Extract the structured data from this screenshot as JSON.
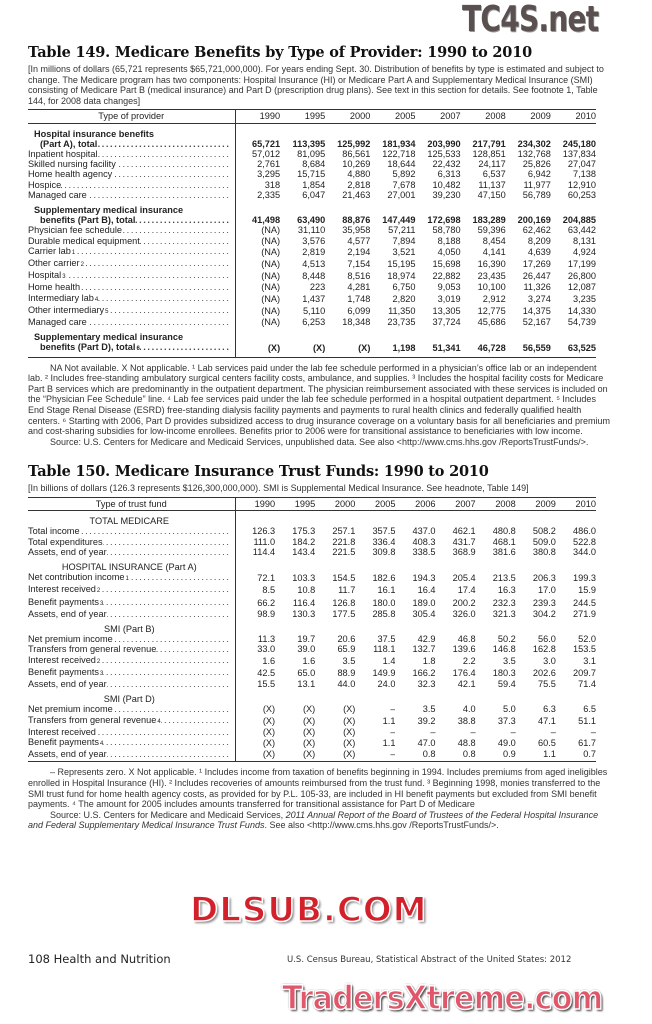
{
  "watermarks": {
    "top": "TC4S.net",
    "middle": "DLSUB.COM",
    "bottom": "TradersXtreme.com"
  },
  "table149": {
    "title": "Table 149. Medicare Benefits by Type of Provider: 1990 to 2010",
    "headnote": "[In millions of dollars (65,721 represents $65,721,000,000). For years ending Sept. 30. Distribution of benefits by type is estimated and subject to change. The Medicare program has two components: Hospital Insurance (HI) or Medicare Part A and Supplementary Medical Insurance (SMI) consisting of Medicare Part B (medical insurance) and Part D (prescription drug plans). See text in this section for details. See footnote 1, Table 144, for 2008 data changes]",
    "stub_header": "Type of provider",
    "years": [
      "1990",
      "1995",
      "2000",
      "2005",
      "2007",
      "2008",
      "2009",
      "2010"
    ],
    "rows": [
      {
        "type": "head",
        "label": "Hospital insurance benefits"
      },
      {
        "type": "total",
        "label": "(Part A), total",
        "values": [
          "65,721",
          "113,395",
          "125,992",
          "181,934",
          "203,990",
          "217,791",
          "234,302",
          "245,180"
        ]
      },
      {
        "type": "row",
        "label": "Inpatient hospital",
        "values": [
          "57,012",
          "81,095",
          "86,561",
          "122,718",
          "125,533",
          "128,851",
          "132,768",
          "137,834"
        ]
      },
      {
        "type": "row",
        "label": "Skilled nursing facility",
        "values": [
          "2,761",
          "8,684",
          "10,269",
          "18,644",
          "22,432",
          "24,117",
          "25,826",
          "27,047"
        ]
      },
      {
        "type": "row",
        "label": "Home health agency",
        "values": [
          "3,295",
          "15,715",
          "4,880",
          "5,892",
          "6,313",
          "6,537",
          "6,942",
          "7,138"
        ]
      },
      {
        "type": "row",
        "label": "Hospice",
        "values": [
          "318",
          "1,854",
          "2,818",
          "7,678",
          "10,482",
          "11,137",
          "11,977",
          "12,910"
        ]
      },
      {
        "type": "row",
        "label": "Managed care",
        "values": [
          "2,335",
          "6,047",
          "21,463",
          "27,001",
          "39,230",
          "47,150",
          "56,789",
          "60,253"
        ]
      },
      {
        "type": "head",
        "label": "Supplementary medical insurance"
      },
      {
        "type": "total",
        "label": "benefits (Part B), total",
        "values": [
          "41,498",
          "63,490",
          "88,876",
          "147,449",
          "172,698",
          "183,289",
          "200,169",
          "204,885"
        ]
      },
      {
        "type": "row",
        "label": "Physician fee schedule",
        "values": [
          "(NA)",
          "31,110",
          "35,958",
          "57,211",
          "58,780",
          "59,396",
          "62,462",
          "63,442"
        ]
      },
      {
        "type": "row",
        "label": "Durable medical equipment",
        "values": [
          "(NA)",
          "3,576",
          "4,577",
          "7,894",
          "8,188",
          "8,454",
          "8,209",
          "8,131"
        ]
      },
      {
        "type": "row",
        "label": "Carrier lab",
        "sup": "1",
        "values": [
          "(NA)",
          "2,819",
          "2,194",
          "3,521",
          "4,050",
          "4,141",
          "4,639",
          "4,924"
        ]
      },
      {
        "type": "row",
        "label": "Other carrier",
        "sup": "2",
        "values": [
          "(NA)",
          "4,513",
          "7,154",
          "15,195",
          "15,698",
          "16,390",
          "17,269",
          "17,199"
        ]
      },
      {
        "type": "row",
        "label": "Hospital",
        "sup": "3",
        "values": [
          "(NA)",
          "8,448",
          "8,516",
          "18,974",
          "22,882",
          "23,435",
          "26,447",
          "26,800"
        ]
      },
      {
        "type": "row",
        "label": "Home health",
        "values": [
          "(NA)",
          "223",
          "4,281",
          "6,750",
          "9,053",
          "10,100",
          "11,326",
          "12,087"
        ]
      },
      {
        "type": "row",
        "label": "Intermediary lab",
        "sup": "4",
        "values": [
          "(NA)",
          "1,437",
          "1,748",
          "2,820",
          "3,019",
          "2,912",
          "3,274",
          "3,235"
        ]
      },
      {
        "type": "row",
        "label": "Other intermediary",
        "sup": "5",
        "values": [
          "(NA)",
          "5,110",
          "6,099",
          "11,350",
          "13,305",
          "12,775",
          "14,375",
          "14,330"
        ]
      },
      {
        "type": "row",
        "label": "Managed care",
        "values": [
          "(NA)",
          "6,253",
          "18,348",
          "23,735",
          "37,724",
          "45,686",
          "52,167",
          "54,739"
        ]
      },
      {
        "type": "head",
        "label": "Supplementary medical insurance"
      },
      {
        "type": "total",
        "label": "benefits (Part D), total",
        "sup": "6",
        "values": [
          "(X)",
          "(X)",
          "(X)",
          "1,198",
          "51,341",
          "46,728",
          "56,559",
          "63,525"
        ]
      }
    ],
    "notes": "NA Not available. X Not applicable. ¹ Lab services paid under the lab fee schedule performed in a physician’s office lab or an independent lab. ² Includes free-standing ambulatory surgical centers facility costs, ambulance, and supplies. ³ Includes the hospital facility costs for Medicare Part B services which are predominantly in the outpatient department. The physician reimbursement associated with these services is included on the “Physician Fee Schedule” line. ⁴ Lab fee services paid under the lab fee schedule performed in a hospital outpatient department. ⁵ Includes End Stage Renal Disease (ESRD) free-standing dialysis facility payments and payments to rural health clinics and federally qualified health centers. ⁶ Starting with 2006, Part D provides subsidized access to drug insurance coverage on a voluntary basis for all beneficiaries and premium and cost-sharing subsidies for low-income enrollees. Benefits prior to 2006 were for transitional assistance to beneficiaries with low income.",
    "source": "Source: U.S. Centers for Medicare and Medicaid Services, unpublished data. See also <http://www.cms.hhs.gov /ReportsTrustFunds/>."
  },
  "table150": {
    "title": "Table 150. Medicare Insurance Trust Funds: 1990 to 2010",
    "headnote": "[In billions of dollars (126.3 represents $126,300,000,000). SMI is Supplemental Medical Insurance. See headnote, Table 149]",
    "stub_header": "Type of trust fund",
    "years": [
      "1990",
      "1995",
      "2000",
      "2005",
      "2006",
      "2007",
      "2008",
      "2009",
      "2010"
    ],
    "rows": [
      {
        "type": "section",
        "label": "TOTAL MEDICARE"
      },
      {
        "type": "row",
        "label": "Total income",
        "values": [
          "126.3",
          "175.3",
          "257.1",
          "357.5",
          "437.0",
          "462.1",
          "480.8",
          "508.2",
          "486.0"
        ]
      },
      {
        "type": "row",
        "label": "Total expenditures",
        "values": [
          "111.0",
          "184.2",
          "221.8",
          "336.4",
          "408.3",
          "431.7",
          "468.1",
          "509.0",
          "522.8"
        ]
      },
      {
        "type": "row",
        "label": "Assets, end of year",
        "values": [
          "114.4",
          "143.4",
          "221.5",
          "309.8",
          "338.5",
          "368.9",
          "381.6",
          "380.8",
          "344.0"
        ]
      },
      {
        "type": "section",
        "label": "HOSPITAL INSURANCE (Part A)"
      },
      {
        "type": "row",
        "label": "Net contribution income",
        "sup": "1",
        "values": [
          "72.1",
          "103.3",
          "154.5",
          "182.6",
          "194.3",
          "205.4",
          "213.5",
          "206.3",
          "199.3"
        ]
      },
      {
        "type": "row",
        "label": "Interest received",
        "sup": "2",
        "values": [
          "8.5",
          "10.8",
          "11.7",
          "16.1",
          "16.4",
          "17.4",
          "16.3",
          "17.0",
          "15.9"
        ]
      },
      {
        "type": "row",
        "label": "Benefit payments",
        "sup": "3",
        "values": [
          "66.2",
          "116.4",
          "126.8",
          "180.0",
          "189.0",
          "200.2",
          "232.3",
          "239.3",
          "244.5"
        ]
      },
      {
        "type": "row",
        "label": "Assets, end of year",
        "values": [
          "98.9",
          "130.3",
          "177.5",
          "285.8",
          "305.4",
          "326.0",
          "321.3",
          "304.2",
          "271.9"
        ]
      },
      {
        "type": "section",
        "label": "SMI (Part B)"
      },
      {
        "type": "row",
        "label": "Net premium income",
        "values": [
          "11.3",
          "19.7",
          "20.6",
          "37.5",
          "42.9",
          "46.8",
          "50.2",
          "56.0",
          "52.0"
        ]
      },
      {
        "type": "row",
        "label": "Transfers from general revenue",
        "values": [
          "33.0",
          "39.0",
          "65.9",
          "118.1",
          "132.7",
          "139.6",
          "146.8",
          "162.8",
          "153.5"
        ]
      },
      {
        "type": "row",
        "label": "Interest received",
        "sup": "2",
        "values": [
          "1.6",
          "1.6",
          "3.5",
          "1.4",
          "1.8",
          "2.2",
          "3.5",
          "3.0",
          "3.1"
        ]
      },
      {
        "type": "row",
        "label": "Benefit payments",
        "sup": "3",
        "values": [
          "42.5",
          "65.0",
          "88.9",
          "149.9",
          "166.2",
          "176.4",
          "180.3",
          "202.6",
          "209.7"
        ]
      },
      {
        "type": "row",
        "label": "Assets, end of year",
        "values": [
          "15.5",
          "13.1",
          "44.0",
          "24.0",
          "32.3",
          "42.1",
          "59.4",
          "75.5",
          "71.4"
        ]
      },
      {
        "type": "section",
        "label": "SMI (Part D)"
      },
      {
        "type": "row",
        "label": "Net premium income",
        "values": [
          "(X)",
          "(X)",
          "(X)",
          "–",
          "3.5",
          "4.0",
          "5.0",
          "6.3",
          "6.5"
        ]
      },
      {
        "type": "row",
        "label": "Transfers from general revenue",
        "sup": "4",
        "values": [
          "(X)",
          "(X)",
          "(X)",
          "1.1",
          "39.2",
          "38.8",
          "37.3",
          "47.1",
          "51.1"
        ]
      },
      {
        "type": "row",
        "label": "Interest received",
        "values": [
          "(X)",
          "(X)",
          "(X)",
          "–",
          "–",
          "–",
          "–",
          "–",
          "–"
        ]
      },
      {
        "type": "row",
        "label": "Benefit payments",
        "sup": "4",
        "values": [
          "(X)",
          "(X)",
          "(X)",
          "1.1",
          "47.0",
          "48.8",
          "49.0",
          "60.5",
          "61.7"
        ]
      },
      {
        "type": "row",
        "label": "Assets, end of year",
        "values": [
          "(X)",
          "(X)",
          "(X)",
          "–",
          "0.8",
          "0.8",
          "0.9",
          "1.1",
          "0.7"
        ]
      }
    ],
    "notes": "– Represents zero. X Not applicable. ¹ Includes income from taxation of benefits beginning in 1994. Includes premiums from aged ineligibles enrolled in Hospital Insurance (HI). ² Includes recoveries of amounts reimbursed from the trust fund. ³ Beginning 1998, monies transferred to the SMI trust fund for home health agency costs, as provided for by P.L. 105-33, are included in HI benefit payments but excluded from SMI benefit payments. ⁴ The amount for 2005 includes amounts transferred for transitional assistance for Part D of Medicare",
    "source_prefix": "Source: U.S. Centers for Medicare and Medicaid Services, ",
    "source_title": "2011 Annual Report of the Board of Trustees of the Federal Hospital Insurance and Federal Supplementary Medical Insurance Trust Funds",
    "source_suffix": ". See also <http://www.cms.hhs.gov /ReportsTrustFunds/>."
  },
  "footer": {
    "left": "108  Health and Nutrition",
    "right": "U.S. Census Bureau, Statistical Abstract of the United States: 2012"
  }
}
